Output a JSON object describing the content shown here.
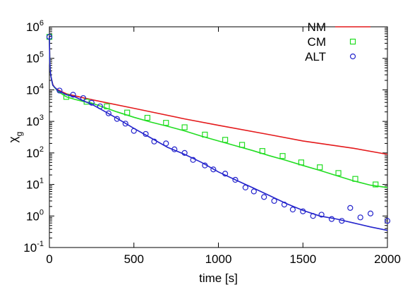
{
  "chart_data": {
    "type": "line",
    "xlabel": "time [s]",
    "ylabel_main": "χ",
    "ylabel_sub": "g",
    "xlim": [
      0,
      2000
    ],
    "ylim": [
      0.1,
      1000000
    ],
    "yscale": "log",
    "x_ticks": [
      0,
      500,
      1000,
      1500,
      2000
    ],
    "y_ticks": [
      {
        "value": 0.1,
        "base": "10",
        "exp": "-1"
      },
      {
        "value": 1,
        "base": "10",
        "exp": "0"
      },
      {
        "value": 10,
        "base": "10",
        "exp": "1"
      },
      {
        "value": 100,
        "base": "10",
        "exp": "2"
      },
      {
        "value": 1000,
        "base": "10",
        "exp": "3"
      },
      {
        "value": 10000,
        "base": "10",
        "exp": "4"
      },
      {
        "value": 100000,
        "base": "10",
        "exp": "5"
      },
      {
        "value": 1000000,
        "base": "10",
        "exp": "6"
      }
    ],
    "legend_position": "top-right",
    "series": [
      {
        "name": "NM",
        "color": "#e41a1c",
        "style": "line",
        "x": [
          0,
          2,
          5,
          10,
          20,
          30,
          50,
          100,
          150,
          200,
          300,
          500,
          800,
          1000,
          1300,
          1500,
          1800,
          2000
        ],
        "y": [
          480000,
          80000,
          40000,
          25000,
          15000,
          12000,
          10000,
          7500,
          6500,
          5600,
          4300,
          2600,
          1200,
          750,
          380,
          240,
          140,
          90
        ]
      },
      {
        "name": "CM",
        "color": "#22dd22",
        "style": "line+square",
        "x": [
          0,
          2,
          5,
          10,
          20,
          50,
          100,
          150,
          200,
          250,
          300,
          400,
          500,
          600,
          700,
          800,
          900,
          1000,
          1100,
          1200,
          1300,
          1400,
          1500,
          1600,
          1700,
          1800,
          1900,
          2000
        ],
        "y": [
          480000,
          80000,
          40000,
          25000,
          14000,
          9000,
          6000,
          5000,
          4300,
          3800,
          3100,
          2000,
          1350,
          950,
          700,
          500,
          340,
          240,
          170,
          120,
          82,
          58,
          40,
          28,
          19,
          13,
          9.5,
          8
        ],
        "marker_x": [
          0,
          100,
          220,
          340,
          460,
          580,
          690,
          800,
          920,
          1040,
          1140,
          1260,
          1380,
          1490,
          1600,
          1710,
          1810,
          1930
        ],
        "marker_y": [
          480000,
          6000,
          4200,
          3000,
          1900,
          1300,
          900,
          650,
          380,
          260,
          180,
          115,
          80,
          50,
          35,
          23,
          15,
          10
        ]
      },
      {
        "name": "ALT",
        "color": "#2424cc",
        "style": "line+circle",
        "x": [
          0,
          2,
          5,
          10,
          20,
          50,
          100,
          150,
          200,
          250,
          300,
          400,
          500,
          600,
          700,
          800,
          900,
          1000,
          1100,
          1200,
          1300,
          1400,
          1500,
          1600,
          1700,
          1800,
          1900,
          2000
        ],
        "y": [
          480000,
          80000,
          40000,
          25000,
          14000,
          9500,
          7000,
          6000,
          4500,
          3500,
          2500,
          1250,
          600,
          300,
          150,
          90,
          50,
          25,
          14,
          8,
          4.5,
          2.5,
          1.5,
          1.0,
          0.8,
          0.6,
          0.45,
          0.35
        ],
        "marker_x": [
          0,
          60,
          140,
          200,
          250,
          300,
          350,
          400,
          450,
          500,
          570,
          620,
          690,
          740,
          800,
          850,
          920,
          970,
          1040,
          1100,
          1160,
          1210,
          1270,
          1330,
          1390,
          1440,
          1500,
          1560,
          1610,
          1670,
          1730,
          1780,
          1840,
          1900,
          2000
        ],
        "marker_y": [
          480000,
          9500,
          7000,
          5500,
          3900,
          3000,
          1800,
          1200,
          850,
          500,
          400,
          230,
          200,
          130,
          100,
          60,
          40,
          30,
          22,
          14,
          8,
          6,
          4,
          3,
          2.3,
          1.6,
          1.4,
          1.0,
          1.1,
          0.8,
          0.7,
          1.8,
          0.9,
          1.2,
          0.7
        ]
      }
    ]
  }
}
